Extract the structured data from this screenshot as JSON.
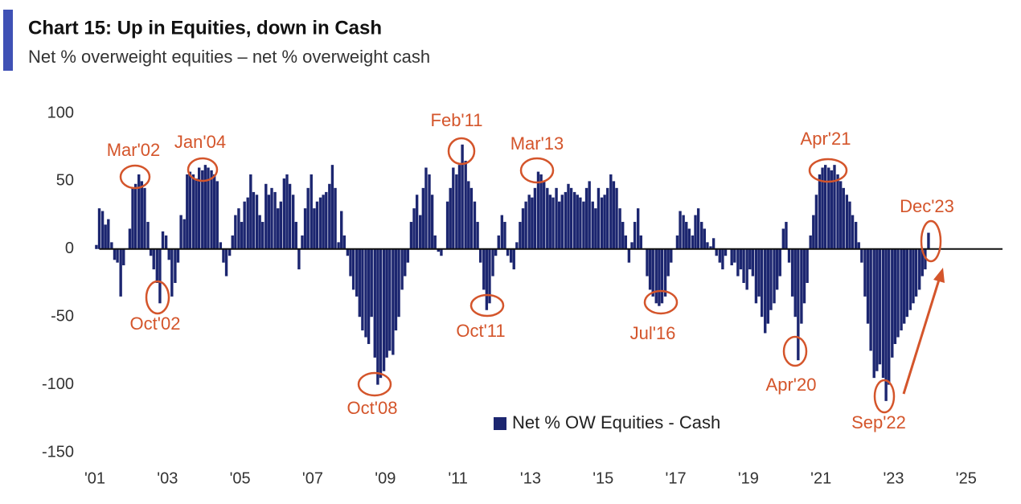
{
  "chart_data": {
    "type": "bar",
    "title": "Chart 15: Up in Equities, down in Cash",
    "subtitle": "Net % overweight equities – net % overweight cash",
    "series": [
      {
        "name": "Net % OW Equities - Cash",
        "color": "#1c2670",
        "x": [
          2001.0,
          2001.08,
          2001.17,
          2001.25,
          2001.33,
          2001.42,
          2001.5,
          2001.58,
          2001.67,
          2001.75,
          2001.83,
          2001.92,
          2002.0,
          2002.08,
          2002.17,
          2002.25,
          2002.33,
          2002.42,
          2002.5,
          2002.58,
          2002.67,
          2002.75,
          2002.83,
          2002.92,
          2003.0,
          2003.08,
          2003.17,
          2003.25,
          2003.33,
          2003.42,
          2003.5,
          2003.58,
          2003.67,
          2003.75,
          2003.83,
          2003.92,
          2004.0,
          2004.08,
          2004.17,
          2004.25,
          2004.33,
          2004.42,
          2004.5,
          2004.58,
          2004.67,
          2004.75,
          2004.83,
          2004.92,
          2005.0,
          2005.08,
          2005.17,
          2005.25,
          2005.33,
          2005.42,
          2005.5,
          2005.58,
          2005.67,
          2005.75,
          2005.83,
          2005.92,
          2006.0,
          2006.08,
          2006.17,
          2006.25,
          2006.33,
          2006.42,
          2006.5,
          2006.58,
          2006.67,
          2006.75,
          2006.83,
          2006.92,
          2007.0,
          2007.08,
          2007.17,
          2007.25,
          2007.33,
          2007.42,
          2007.5,
          2007.58,
          2007.67,
          2007.75,
          2007.83,
          2007.92,
          2008.0,
          2008.08,
          2008.17,
          2008.25,
          2008.33,
          2008.42,
          2008.5,
          2008.58,
          2008.67,
          2008.75,
          2008.83,
          2008.92,
          2009.0,
          2009.08,
          2009.17,
          2009.25,
          2009.33,
          2009.42,
          2009.5,
          2009.58,
          2009.67,
          2009.75,
          2009.83,
          2009.92,
          2010.0,
          2010.08,
          2010.17,
          2010.25,
          2010.33,
          2010.42,
          2010.5,
          2010.58,
          2010.67,
          2010.75,
          2010.83,
          2010.92,
          2011.0,
          2011.08,
          2011.17,
          2011.25,
          2011.33,
          2011.42,
          2011.5,
          2011.58,
          2011.67,
          2011.75,
          2011.83,
          2011.92,
          2012.0,
          2012.08,
          2012.17,
          2012.25,
          2012.33,
          2012.42,
          2012.5,
          2012.58,
          2012.67,
          2012.75,
          2012.83,
          2012.92,
          2013.0,
          2013.08,
          2013.17,
          2013.25,
          2013.33,
          2013.42,
          2013.5,
          2013.58,
          2013.67,
          2013.75,
          2013.83,
          2013.92,
          2014.0,
          2014.08,
          2014.17,
          2014.25,
          2014.33,
          2014.42,
          2014.5,
          2014.58,
          2014.67,
          2014.75,
          2014.83,
          2014.92,
          2015.0,
          2015.08,
          2015.17,
          2015.25,
          2015.33,
          2015.42,
          2015.5,
          2015.58,
          2015.67,
          2015.75,
          2015.83,
          2015.92,
          2016.0,
          2016.08,
          2016.17,
          2016.25,
          2016.33,
          2016.42,
          2016.5,
          2016.58,
          2016.67,
          2016.75,
          2016.83,
          2016.92,
          2017.0,
          2017.08,
          2017.17,
          2017.25,
          2017.33,
          2017.42,
          2017.5,
          2017.58,
          2017.67,
          2017.75,
          2017.83,
          2017.92,
          2018.0,
          2018.08,
          2018.17,
          2018.25,
          2018.33,
          2018.42,
          2018.5,
          2018.58,
          2018.67,
          2018.75,
          2018.83,
          2018.92,
          2019.0,
          2019.08,
          2019.17,
          2019.25,
          2019.33,
          2019.42,
          2019.5,
          2019.58,
          2019.67,
          2019.75,
          2019.83,
          2019.92,
          2020.0,
          2020.08,
          2020.17,
          2020.25,
          2020.33,
          2020.42,
          2020.5,
          2020.58,
          2020.67,
          2020.75,
          2020.83,
          2020.92,
          2021.0,
          2021.08,
          2021.17,
          2021.25,
          2021.33,
          2021.42,
          2021.5,
          2021.58,
          2021.67,
          2021.75,
          2021.83,
          2021.92,
          2022.0,
          2022.08,
          2022.17,
          2022.25,
          2022.33,
          2022.42,
          2022.5,
          2022.58,
          2022.67,
          2022.75,
          2022.83,
          2022.92,
          2023.0,
          2023.08,
          2023.17,
          2023.25,
          2023.33,
          2023.42,
          2023.5,
          2023.58,
          2023.67,
          2023.75,
          2023.83,
          2023.92
        ],
        "values": [
          3,
          30,
          28,
          18,
          22,
          5,
          -8,
          -10,
          -35,
          -12,
          0,
          15,
          45,
          48,
          55,
          50,
          45,
          20,
          -5,
          -15,
          -25,
          -40,
          13,
          10,
          -8,
          -35,
          -25,
          -10,
          25,
          22,
          55,
          57,
          55,
          52,
          60,
          58,
          62,
          60,
          58,
          55,
          50,
          5,
          -10,
          -20,
          -5,
          10,
          25,
          30,
          20,
          35,
          38,
          55,
          42,
          40,
          25,
          20,
          48,
          40,
          45,
          42,
          30,
          35,
          52,
          55,
          48,
          40,
          20,
          -15,
          10,
          30,
          45,
          55,
          30,
          35,
          38,
          40,
          42,
          48,
          62,
          45,
          5,
          28,
          10,
          -5,
          -20,
          -30,
          -35,
          -50,
          -60,
          -65,
          -70,
          -50,
          -80,
          -100,
          -95,
          -90,
          -80,
          -75,
          -78,
          -60,
          -50,
          -30,
          -20,
          -10,
          20,
          30,
          40,
          25,
          45,
          60,
          55,
          40,
          10,
          -2,
          -5,
          0,
          35,
          45,
          60,
          55,
          62,
          77,
          65,
          50,
          45,
          35,
          20,
          -10,
          -30,
          -45,
          -40,
          -20,
          -5,
          10,
          25,
          20,
          -5,
          -10,
          -15,
          5,
          20,
          30,
          35,
          40,
          38,
          45,
          57,
          55,
          50,
          45,
          40,
          38,
          45,
          35,
          40,
          42,
          48,
          45,
          42,
          40,
          38,
          35,
          45,
          50,
          35,
          30,
          45,
          38,
          40,
          45,
          55,
          50,
          45,
          30,
          20,
          10,
          -10,
          5,
          20,
          30,
          10,
          0,
          -20,
          -30,
          -35,
          -40,
          -42,
          -40,
          -35,
          -20,
          -10,
          0,
          10,
          28,
          25,
          20,
          15,
          10,
          25,
          30,
          20,
          15,
          5,
          2,
          8,
          -5,
          -10,
          -15,
          -5,
          0,
          -12,
          -10,
          -20,
          -15,
          -25,
          -30,
          -15,
          -20,
          -40,
          -35,
          -50,
          -62,
          -55,
          -45,
          -40,
          -30,
          -20,
          15,
          20,
          -10,
          -35,
          -50,
          -82,
          -55,
          -40,
          -25,
          10,
          25,
          40,
          55,
          60,
          62,
          60,
          58,
          62,
          55,
          50,
          45,
          40,
          35,
          25,
          20,
          5,
          -10,
          -35,
          -55,
          -75,
          -95,
          -90,
          -85,
          -95,
          -112,
          -100,
          -80,
          -70,
          -65,
          -60,
          -55,
          -50,
          -45,
          -40,
          -35,
          -30,
          -20,
          -15,
          12
        ]
      }
    ],
    "xlim": [
      2000.9,
      2026
    ],
    "xticks": [
      {
        "value": 2001,
        "label": "'01"
      },
      {
        "value": 2003,
        "label": "'03"
      },
      {
        "value": 2005,
        "label": "'05"
      },
      {
        "value": 2007,
        "label": "'07"
      },
      {
        "value": 2009,
        "label": "'09"
      },
      {
        "value": 2011,
        "label": "'11"
      },
      {
        "value": 2013,
        "label": "'13"
      },
      {
        "value": 2015,
        "label": "'15"
      },
      {
        "value": 2017,
        "label": "'17"
      },
      {
        "value": 2019,
        "label": "'19"
      },
      {
        "value": 2021,
        "label": "'21"
      },
      {
        "value": 2023,
        "label": "'23"
      },
      {
        "value": 2025,
        "label": "'25"
      }
    ],
    "ylim": [
      -150,
      100
    ],
    "yticks": [
      -150,
      -100,
      -50,
      0,
      50,
      100
    ],
    "grid": false,
    "legend": "bottom",
    "annotations": [
      "Mar'02",
      "Jan'04",
      "Oct'02",
      "Oct'08",
      "Feb'11",
      "Mar'13",
      "Oct'11",
      "Jul'16",
      "Apr'20",
      "Apr'21",
      "Dec'23",
      "Sep'22"
    ],
    "annotation_color": "#d4552b"
  }
}
